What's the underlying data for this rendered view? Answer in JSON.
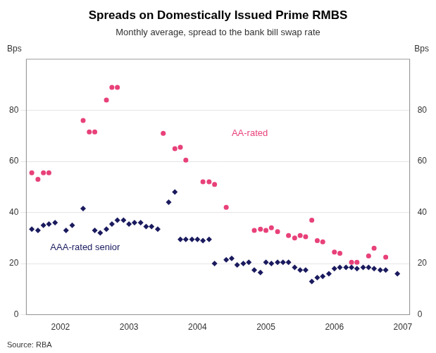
{
  "chart_data": {
    "type": "scatter",
    "title": "Spreads on Domestically Issued Prime RMBS",
    "subtitle": "Monthly average, spread to the bank bill swap rate",
    "ylabel": "Bps",
    "y2label": "Bps",
    "source": "Source: RBA",
    "xlim": [
      2001.5,
      2007.1
    ],
    "xticks": [
      2002,
      2003,
      2004,
      2005,
      2006,
      2007
    ],
    "ylim": [
      0,
      100
    ],
    "yticks": [
      0,
      20,
      40,
      60,
      80
    ],
    "y2lim": [
      0,
      100
    ],
    "y2ticks": [
      0,
      20,
      40,
      60,
      80
    ],
    "grid": "y",
    "annotations": [
      {
        "text": "AA-rated",
        "x": 2004.5,
        "y": 69,
        "color": "#e8417a"
      },
      {
        "text": "AAA-rated senior",
        "x": 2001.85,
        "y": 24.5,
        "color": "#1a1a5e"
      }
    ],
    "series": [
      {
        "name": "AA-rated",
        "color": "#e8417a",
        "marker": "circle",
        "x": [
          2001.58,
          2001.67,
          2001.75,
          2001.83,
          2002.33,
          2002.42,
          2002.5,
          2002.67,
          2002.75,
          2002.83,
          2003.5,
          2003.67,
          2003.75,
          2003.83,
          2004.08,
          2004.17,
          2004.25,
          2004.42,
          2004.83,
          2004.92,
          2005.0,
          2005.08,
          2005.17,
          2005.33,
          2005.42,
          2005.5,
          2005.58,
          2005.67,
          2005.75,
          2005.83,
          2006.0,
          2006.08,
          2006.25,
          2006.33,
          2006.5,
          2006.58,
          2006.75
        ],
        "values": [
          55.5,
          53.0,
          55.5,
          55.5,
          76.0,
          71.5,
          71.5,
          84.0,
          89.0,
          89.0,
          71.0,
          65.0,
          65.5,
          60.5,
          52.0,
          52.0,
          51.0,
          42.0,
          33.0,
          33.5,
          33.0,
          34.0,
          32.5,
          31.0,
          30.0,
          31.0,
          30.5,
          37.0,
          29.0,
          28.5,
          24.5,
          24.0,
          20.5,
          20.5,
          23.0,
          26.0,
          22.5
        ]
      },
      {
        "name": "AAA-rated senior",
        "color": "#1a1a5e",
        "marker": "diamond",
        "x": [
          2001.58,
          2001.67,
          2001.75,
          2001.83,
          2001.92,
          2002.08,
          2002.17,
          2002.33,
          2002.5,
          2002.58,
          2002.67,
          2002.75,
          2002.83,
          2002.92,
          2003.0,
          2003.08,
          2003.17,
          2003.25,
          2003.33,
          2003.42,
          2003.58,
          2003.67,
          2003.75,
          2003.83,
          2003.92,
          2004.0,
          2004.08,
          2004.17,
          2004.25,
          2004.42,
          2004.5,
          2004.58,
          2004.67,
          2004.75,
          2004.83,
          2004.92,
          2005.0,
          2005.08,
          2005.17,
          2005.25,
          2005.33,
          2005.42,
          2005.5,
          2005.58,
          2005.67,
          2005.75,
          2005.83,
          2005.92,
          2006.0,
          2006.08,
          2006.17,
          2006.25,
          2006.33,
          2006.42,
          2006.5,
          2006.58,
          2006.67,
          2006.75,
          2006.92
        ],
        "values": [
          33.5,
          33.0,
          35.0,
          35.5,
          36.0,
          33.0,
          35.0,
          41.5,
          33.0,
          32.0,
          33.5,
          35.5,
          37.0,
          37.0,
          35.5,
          36.0,
          36.0,
          34.5,
          34.5,
          33.5,
          44.0,
          48.0,
          29.5,
          29.5,
          29.5,
          29.5,
          29.0,
          29.5,
          20.0,
          21.5,
          22.0,
          19.5,
          20.0,
          20.5,
          17.5,
          16.5,
          20.5,
          20.0,
          20.5,
          20.5,
          20.5,
          18.5,
          17.5,
          17.5,
          13.0,
          14.5,
          15.0,
          16.0,
          18.0,
          18.5,
          18.5,
          18.5,
          18.0,
          18.5,
          18.5,
          18.0,
          17.5,
          17.5,
          16.0
        ]
      }
    ]
  }
}
